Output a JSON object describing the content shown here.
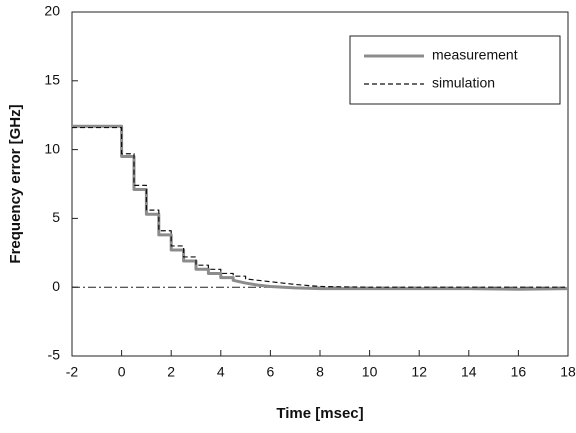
{
  "chart_data": {
    "type": "line",
    "xlabel": "Time [msec]",
    "ylabel": "Frequency error [GHz]",
    "xlim": [
      -2,
      18
    ],
    "ylim": [
      -5,
      20
    ],
    "xticks": [
      -2,
      0,
      2,
      4,
      6,
      8,
      10,
      12,
      14,
      16,
      18
    ],
    "yticks": [
      -5,
      0,
      5,
      10,
      15,
      20
    ],
    "reference_line": 0,
    "legend": "upper right",
    "series": [
      {
        "name": "measurement",
        "color": "#8c8c8c",
        "dash": "solid",
        "x": [
          -2,
          0,
          0,
          0.5,
          0.5,
          1,
          1,
          1.5,
          1.5,
          2,
          2,
          2.5,
          2.5,
          3,
          3,
          3.5,
          3.5,
          4,
          4,
          4.5,
          4.5,
          5,
          5.5,
          6,
          7,
          8,
          10,
          12,
          14,
          16,
          18
        ],
        "values": [
          11.7,
          11.7,
          9.5,
          9.5,
          7.1,
          7.1,
          5.3,
          5.3,
          3.8,
          3.8,
          2.7,
          2.7,
          1.9,
          1.9,
          1.3,
          1.3,
          1.0,
          1.0,
          0.7,
          0.7,
          0.5,
          0.3,
          0.15,
          0.05,
          -0.05,
          -0.1,
          -0.1,
          -0.1,
          -0.1,
          -0.15,
          -0.1
        ]
      },
      {
        "name": "simulation",
        "color": "#111111",
        "dash": "dashed",
        "x": [
          -2,
          0,
          0,
          0.5,
          0.5,
          1,
          1,
          1.5,
          1.5,
          2,
          2,
          2.5,
          2.5,
          3,
          3,
          3.5,
          3.5,
          4,
          4,
          4.5,
          4.5,
          5,
          5,
          6,
          7,
          8,
          10,
          18
        ],
        "values": [
          11.6,
          11.6,
          9.7,
          9.7,
          7.4,
          7.4,
          5.6,
          5.6,
          4.1,
          4.1,
          3.0,
          3.0,
          2.2,
          2.2,
          1.6,
          1.6,
          1.3,
          1.3,
          1.0,
          1.0,
          0.8,
          0.8,
          0.6,
          0.4,
          0.2,
          0.05,
          0,
          0
        ]
      }
    ]
  }
}
